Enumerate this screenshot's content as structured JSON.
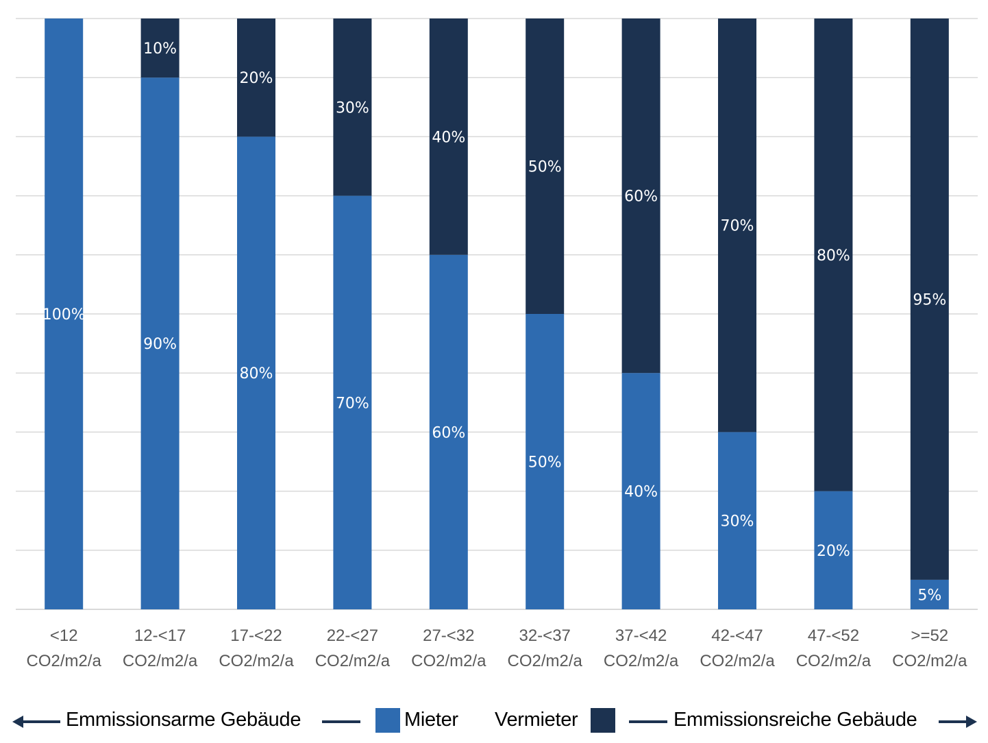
{
  "chart_data": {
    "type": "bar",
    "stacked": true,
    "percent": true,
    "title": "",
    "xlabel": "",
    "ylabel": "",
    "ylim": [
      0,
      100
    ],
    "grid": true,
    "categories": [
      [
        "<12",
        "CO2/m2/a"
      ],
      [
        "12-<17",
        "CO2/m2/a"
      ],
      [
        "17-<22",
        "CO2/m2/a"
      ],
      [
        "22-<27",
        "CO2/m2/a"
      ],
      [
        "27-<32",
        "CO2/m2/a"
      ],
      [
        "32-<37",
        "CO2/m2/a"
      ],
      [
        "37-<42",
        "CO2/m2/a"
      ],
      [
        "42-<47",
        "CO2/m2/a"
      ],
      [
        "47-<52",
        "CO2/m2/a"
      ],
      [
        ">=52",
        "CO2/m2/a"
      ]
    ],
    "series": [
      {
        "name": "Mieter",
        "color": "#2E6BB0",
        "values": [
          100,
          90,
          80,
          70,
          60,
          50,
          40,
          30,
          20,
          5
        ]
      },
      {
        "name": "Vermieter",
        "color": "#1C3250",
        "values": [
          0,
          10,
          20,
          30,
          40,
          50,
          60,
          70,
          80,
          95
        ]
      }
    ],
    "label_suffix": "%",
    "legend_position": "bottom"
  },
  "legend": {
    "left_label": "Emmissionsarme Gebäude",
    "right_label": "Emmissionsreiche Gebäude",
    "mieter": "Mieter",
    "vermieter": "Vermieter",
    "mieter_color": "#2E6BB0",
    "vermieter_color": "#1C3250"
  }
}
